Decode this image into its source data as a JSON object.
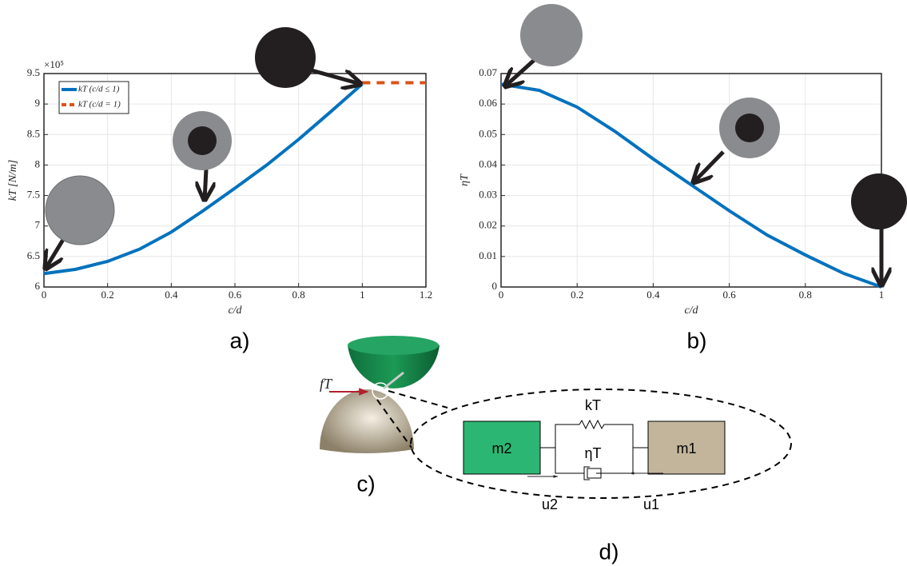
{
  "chart_data": [
    {
      "type": "line",
      "xlabel": "c/d",
      "ylabel": "kT [N/m]",
      "y_scale_label": "×10⁵",
      "xlim": [
        0,
        1.2
      ],
      "xticks": [
        0,
        0.2,
        0.4,
        0.6,
        0.8,
        1,
        1.2
      ],
      "ylim": [
        6,
        9.5
      ],
      "yticks": [
        6,
        6.5,
        7,
        7.5,
        8,
        8.5,
        9,
        9.5
      ],
      "grid": true,
      "legend": "upper left",
      "series": [
        {
          "name": "kT (c/d ≤ 1)",
          "color": "#0072bd",
          "style": "solid",
          "x": [
            0,
            0.1,
            0.2,
            0.3,
            0.4,
            0.5,
            0.6,
            0.7,
            0.8,
            0.9,
            1
          ],
          "values": [
            6.22,
            6.29,
            6.42,
            6.62,
            6.9,
            7.25,
            7.62,
            8.0,
            8.42,
            8.87,
            9.33
          ]
        },
        {
          "name": "kT (c/d = 1)",
          "color": "#d95319",
          "style": "dashed",
          "x": [
            1,
            1.2
          ],
          "values": [
            9.35,
            9.35
          ]
        }
      ]
    },
    {
      "type": "line",
      "xlabel": "c/d",
      "ylabel": "ηT",
      "xlim": [
        0,
        1
      ],
      "xticks": [
        0,
        0.2,
        0.4,
        0.6,
        0.8,
        1
      ],
      "ylim": [
        0,
        0.07
      ],
      "yticks": [
        0,
        0.01,
        0.02,
        0.03,
        0.04,
        0.05,
        0.06,
        0.07
      ],
      "grid": true,
      "color": "#0072bd",
      "x": [
        0,
        0.1,
        0.2,
        0.3,
        0.4,
        0.5,
        0.6,
        0.7,
        0.8,
        0.9,
        1
      ],
      "values": [
        0.0665,
        0.0645,
        0.059,
        0.051,
        0.042,
        0.0335,
        0.025,
        0.017,
        0.0105,
        0.0045,
        0
      ]
    }
  ],
  "panel_labels": [
    "a)",
    "b)",
    "c)",
    "d)"
  ],
  "diagram": {
    "force": "fT",
    "mass_left": "m2",
    "mass_right": "m1",
    "spring": "kT",
    "damper": "ηT",
    "disp_left": "u2",
    "disp_right": "u1"
  }
}
